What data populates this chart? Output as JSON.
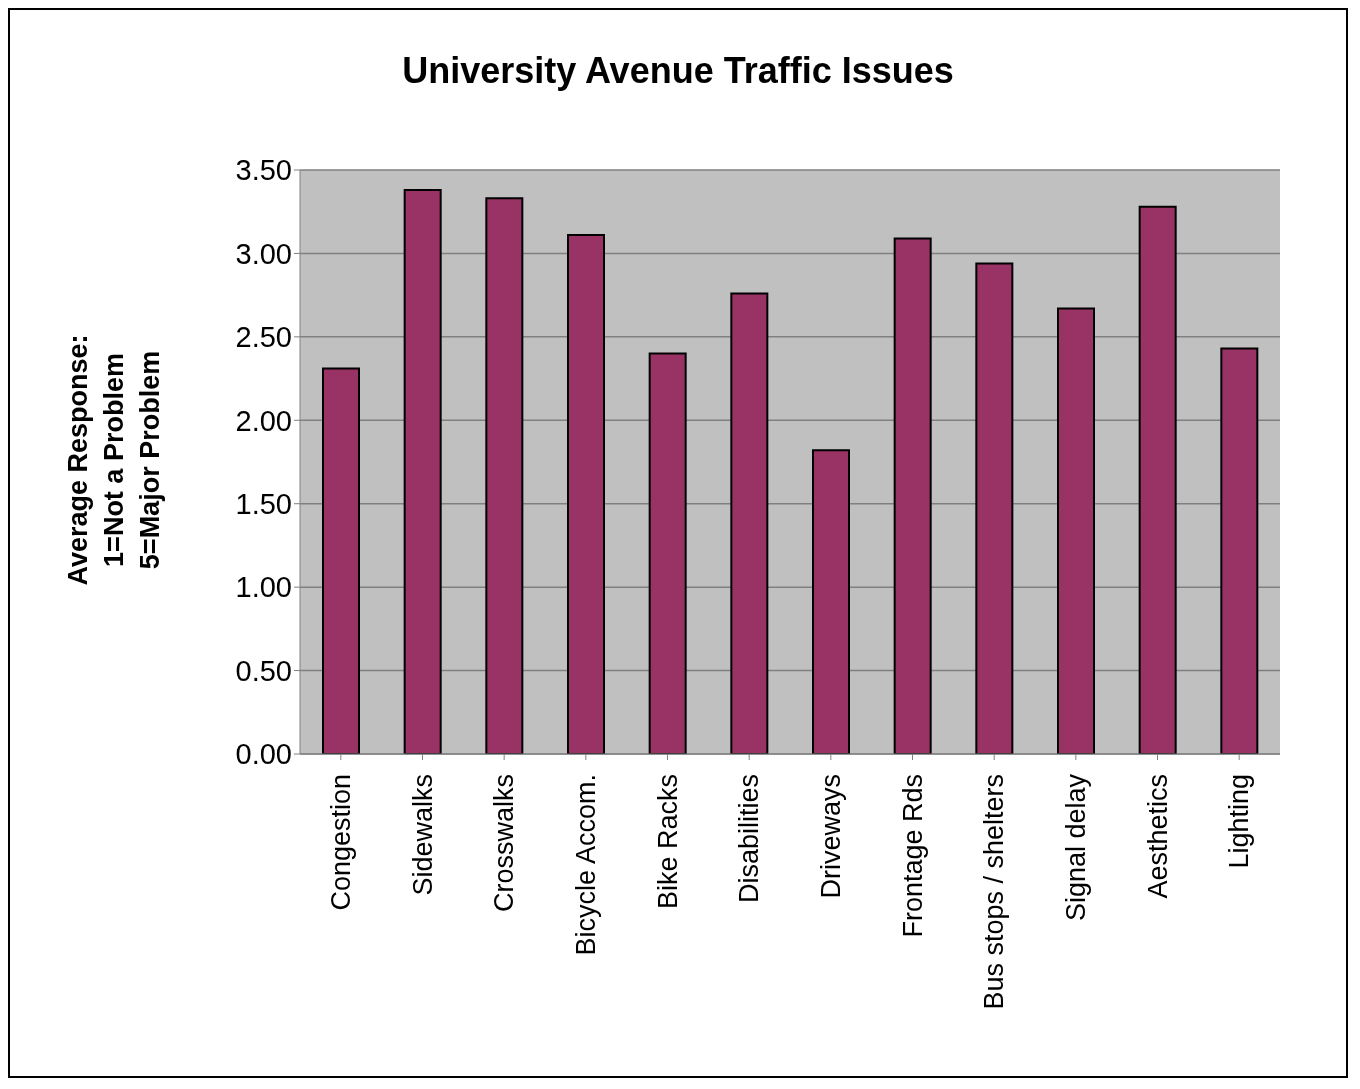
{
  "chart_data": {
    "type": "bar",
    "title": "University Avenue Traffic Issues",
    "ylabel": "Average Response:\n1=Not a Problem\n5=Major Problem",
    "categories": [
      "Congestion",
      "Sidewalks",
      "Crosswalks",
      "Bicycle Accom.",
      "Bike Racks",
      "Disabilities",
      "Driveways",
      "Frontage Rds",
      "Bus stops / shelters",
      "Signal delay",
      "Aesthetics",
      "Lighting"
    ],
    "values": [
      2.31,
      3.38,
      3.33,
      3.11,
      2.4,
      2.76,
      1.82,
      3.09,
      2.94,
      2.67,
      3.28,
      2.43
    ],
    "color": "#993366",
    "ylim": [
      0,
      3.5
    ],
    "yticks": [
      {
        "value": 0,
        "label": "0.00"
      },
      {
        "value": 0.5,
        "label": "0.50"
      },
      {
        "value": 1,
        "label": "1.00"
      },
      {
        "value": 1.5,
        "label": "1.50"
      },
      {
        "value": 2,
        "label": "2.00"
      },
      {
        "value": 2.5,
        "label": "2.50"
      },
      {
        "value": 3,
        "label": "3.00"
      },
      {
        "value": 3.5,
        "label": "3.50"
      }
    ],
    "grid": "y",
    "legend": false
  }
}
